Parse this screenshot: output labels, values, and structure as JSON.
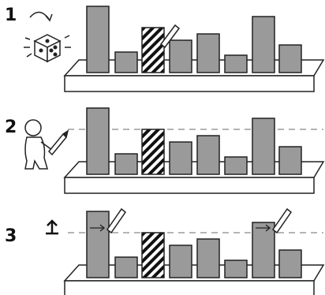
{
  "steps": [
    {
      "label": "1"
    },
    {
      "label": "2"
    },
    {
      "label": "3"
    }
  ]
}
